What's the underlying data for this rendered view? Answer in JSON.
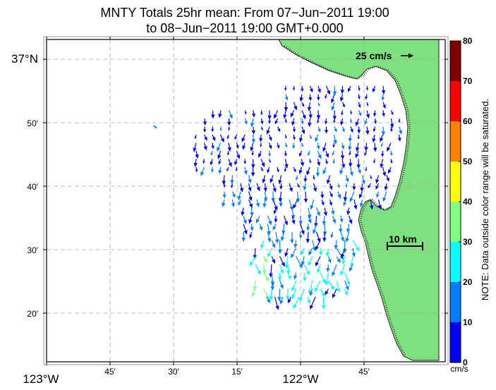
{
  "title": {
    "line1": "MNTY Totals 25hr mean: From 07−Jun−2011 19:00",
    "line2": "to 08−Jun−2011 19:00 GMT+0.000"
  },
  "map": {
    "lon_ticks": [
      {
        "deg": "123",
        "minutes": "",
        "label": "123°W"
      },
      {
        "deg": "",
        "minutes": "45′",
        "label": "45′"
      },
      {
        "deg": "",
        "minutes": "30′",
        "label": "30′"
      },
      {
        "deg": "",
        "minutes": "15′",
        "label": "15′"
      },
      {
        "deg": "122",
        "minutes": "",
        "label": "122°W"
      },
      {
        "deg": "",
        "minutes": "45′",
        "label": "45′"
      }
    ],
    "lat_ticks": [
      {
        "label": "37°N",
        "major": true
      },
      {
        "label": "50′",
        "major": false
      },
      {
        "label": "40′",
        "major": false
      },
      {
        "label": "30′",
        "major": false
      },
      {
        "label": "20′",
        "major": false
      }
    ],
    "ocean_color": "#ffffff",
    "land_color": "#7fe07f",
    "grid": "dashed",
    "reference_vector": {
      "label": "25 cm/s"
    },
    "scale_bar": {
      "label": "10 km"
    }
  },
  "colorbar": {
    "unit": "cm/s",
    "ticks": [
      "0",
      "10",
      "20",
      "30",
      "40",
      "50",
      "60",
      "70",
      "80"
    ],
    "colors": [
      "#0000ff",
      "#0080ff",
      "#00ffff",
      "#80ff80",
      "#ffff00",
      "#ff8000",
      "#ff0000",
      "#800000"
    ]
  },
  "note": "NOTE: Data outside color range will be saturated."
}
